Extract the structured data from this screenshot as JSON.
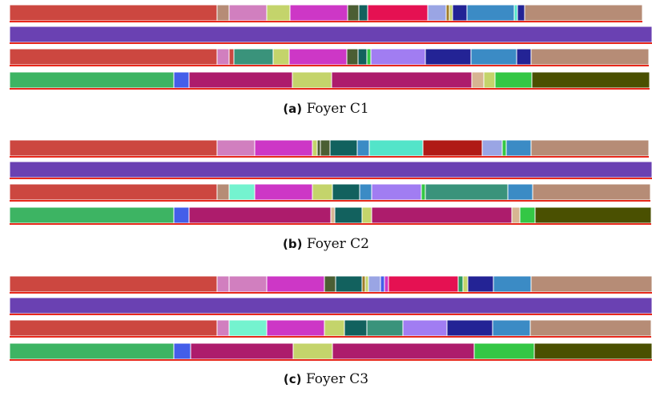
{
  "palette": {
    "R": "#cc4740",
    "P": "#6a41b2",
    "G": "#3db463",
    "B": "#445ee9",
    "M": "#ad1c6c",
    "Y": "#c4d46b",
    "O": "#4a5001",
    "T": "#b68c76",
    "K": "#d17fbf",
    "U": "#cd37c6",
    "N": "#4b5e33",
    "E": "#12615e",
    "C": "#e51152",
    "L": "#9aa5e4",
    "D": "#232395",
    "S": "#3b8bc5",
    "Q": "#74f3cf",
    "W": "#3a937b",
    "V": "#a17df2",
    "X": "#b01a16",
    "Z": "#53e4c9",
    "H": "#d7b592",
    "F": "#34c745",
    "A": "#a17d28",
    "I": "#2e9c60"
  },
  "panels": [
    {
      "label": "(a)",
      "title": "Foyer C1",
      "rows": [
        {
          "segments": [
            [
              "R",
              259
            ],
            [
              "T",
              15
            ],
            [
              "K",
              47
            ],
            [
              "Y",
              29
            ],
            [
              "U",
              72
            ],
            [
              "N",
              14
            ],
            [
              "E",
              11
            ],
            [
              "C",
              75
            ],
            [
              "L",
              23
            ],
            [
              "A",
              4
            ],
            [
              "Y",
              4
            ],
            [
              "D",
              18
            ],
            [
              "S",
              59
            ],
            [
              "Z",
              4
            ],
            [
              "D",
              9
            ],
            [
              "T",
              147
            ]
          ]
        },
        {
          "segments": [
            [
              "P",
              802
            ]
          ]
        },
        {
          "segments": [
            [
              "R",
              259
            ],
            [
              "K",
              15
            ],
            [
              "R",
              6
            ],
            [
              "W",
              49
            ],
            [
              "Y",
              20
            ],
            [
              "U",
              72
            ],
            [
              "N",
              14
            ],
            [
              "E",
              11
            ],
            [
              "F",
              5
            ],
            [
              "V",
              68
            ],
            [
              "D",
              57
            ],
            [
              "S",
              57
            ],
            [
              "D",
              18
            ],
            [
              "T",
              147
            ]
          ]
        },
        {
          "segments": [
            [
              "G",
              205
            ],
            [
              "B",
              19
            ],
            [
              "M",
              129
            ],
            [
              "Y",
              49
            ],
            [
              "M",
              175
            ],
            [
              "H",
              15
            ],
            [
              "Y",
              14
            ],
            [
              "F",
              46
            ],
            [
              "O",
              147
            ]
          ]
        }
      ]
    },
    {
      "label": "(b)",
      "title": "Foyer C2",
      "rows": [
        {
          "segments": [
            [
              "R",
              259
            ],
            [
              "K",
              47
            ],
            [
              "U",
              72
            ],
            [
              "Y",
              6
            ],
            [
              "N",
              4
            ],
            [
              "N",
              12
            ],
            [
              "E",
              34
            ],
            [
              "S",
              15
            ],
            [
              "Z",
              67
            ],
            [
              "X",
              74
            ],
            [
              "L",
              25
            ],
            [
              "F",
              5
            ],
            [
              "S",
              31
            ],
            [
              "T",
              147
            ]
          ]
        },
        {
          "segments": [
            [
              "P",
              802
            ]
          ]
        },
        {
          "segments": [
            [
              "R",
              259
            ],
            [
              "T",
              15
            ],
            [
              "Q",
              32
            ],
            [
              "U",
              72
            ],
            [
              "Y",
              25
            ],
            [
              "E",
              34
            ],
            [
              "S",
              15
            ],
            [
              "V",
              62
            ],
            [
              "F",
              5
            ],
            [
              "W",
              103
            ],
            [
              "S",
              31
            ],
            [
              "T",
              147
            ]
          ]
        },
        {
          "segments": [
            [
              "G",
              205
            ],
            [
              "B",
              19
            ],
            [
              "M",
              177
            ],
            [
              "H",
              5
            ],
            [
              "E",
              34
            ],
            [
              "Y",
              12
            ],
            [
              "M",
              175
            ],
            [
              "H",
              10
            ],
            [
              "F",
              19
            ],
            [
              "O",
              145
            ]
          ]
        }
      ]
    },
    {
      "label": "(c)",
      "title": "Foyer C3",
      "rows": [
        {
          "segments": [
            [
              "R",
              259
            ],
            [
              "K",
              15
            ],
            [
              "K",
              47
            ],
            [
              "U",
              72
            ],
            [
              "N",
              14
            ],
            [
              "E",
              33
            ],
            [
              "A",
              4
            ],
            [
              "Y",
              4
            ],
            [
              "L",
              15
            ],
            [
              "B",
              5
            ],
            [
              "U",
              5
            ],
            [
              "C",
              87
            ],
            [
              "I",
              6
            ],
            [
              "Y",
              6
            ],
            [
              "D",
              32
            ],
            [
              "S",
              47
            ],
            [
              "T",
              151
            ]
          ]
        },
        {
          "segments": [
            [
              "P",
              802
            ]
          ]
        },
        {
          "segments": [
            [
              "R",
              259
            ],
            [
              "K",
              15
            ],
            [
              "Q",
              47
            ],
            [
              "U",
              72
            ],
            [
              "Y",
              25
            ],
            [
              "E",
              28
            ],
            [
              "W",
              45
            ],
            [
              "V",
              55
            ],
            [
              "D",
              57
            ],
            [
              "S",
              47
            ],
            [
              "T",
              151
            ]
          ]
        },
        {
          "segments": [
            [
              "G",
              205
            ],
            [
              "B",
              21
            ],
            [
              "M",
              128
            ],
            [
              "Y",
              49
            ],
            [
              "M",
              177
            ],
            [
              "F",
              75
            ],
            [
              "O",
              147
            ]
          ]
        }
      ]
    }
  ]
}
